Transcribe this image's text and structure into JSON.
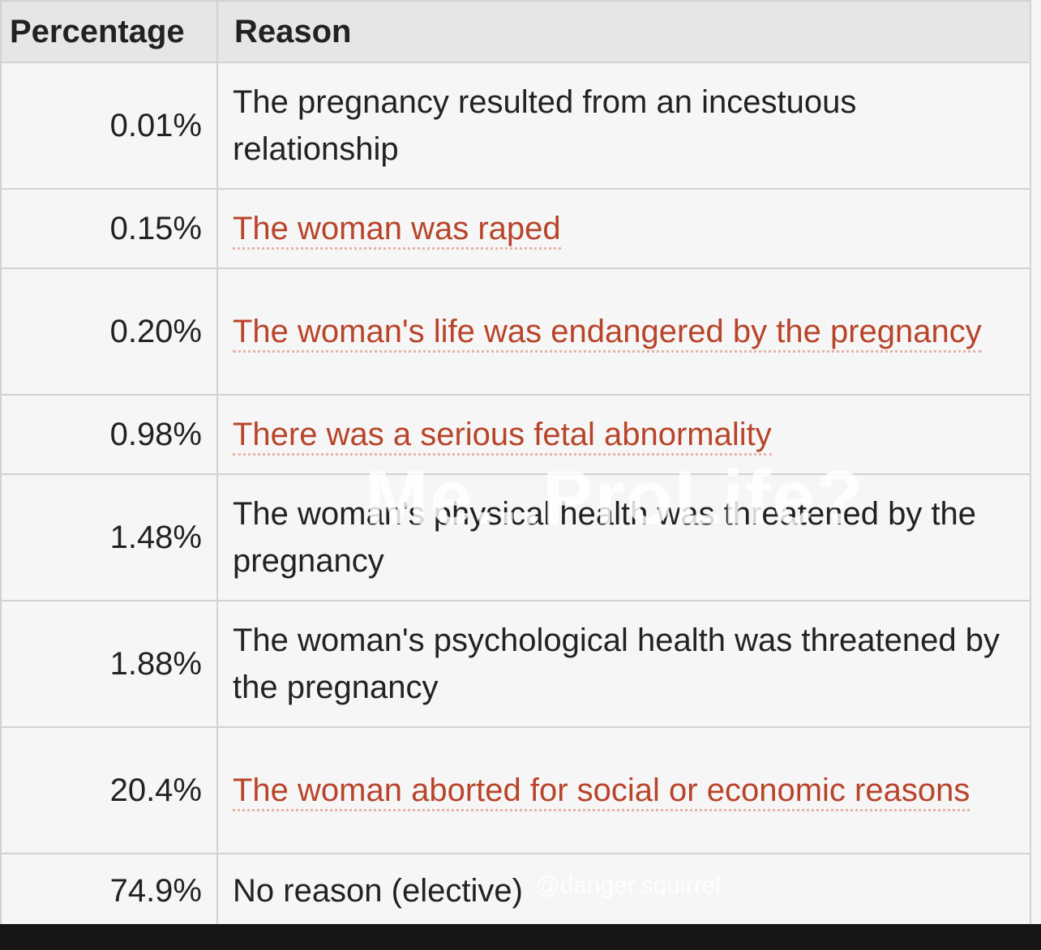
{
  "table": {
    "headers": {
      "percentage": "Percentage",
      "reason": "Reason"
    },
    "rows": [
      {
        "percentage": "0.01%",
        "reason": "The pregnancy resulted from an incestuous relationship",
        "linked": false
      },
      {
        "percentage": "0.15%",
        "reason": "The woman was raped",
        "linked": true
      },
      {
        "percentage": "0.20%",
        "reason": "The woman's life was endangered by the pregnancy",
        "linked": true
      },
      {
        "percentage": "0.98%",
        "reason": "There was a serious fetal abnormality",
        "linked": true
      },
      {
        "percentage": "1.48%",
        "reason": "The woman's physical health was threatened by the pregnancy",
        "linked": false
      },
      {
        "percentage": "1.88%",
        "reason": "The woman's psychological health was threatened by the pregnancy",
        "linked": false
      },
      {
        "percentage": "20.4%",
        "reason": "The woman aborted for social or economic reasons",
        "linked": true
      },
      {
        "percentage": "74.9%",
        "reason": "No reason (elective)",
        "linked": false
      }
    ]
  },
  "overlay_text": "Me...ProLife?",
  "watermark": "@danger.squirrel",
  "colors": {
    "link": "#b8442a",
    "text": "#222222",
    "header_bg": "#e6e6e6",
    "border": "#d2d2d2"
  }
}
